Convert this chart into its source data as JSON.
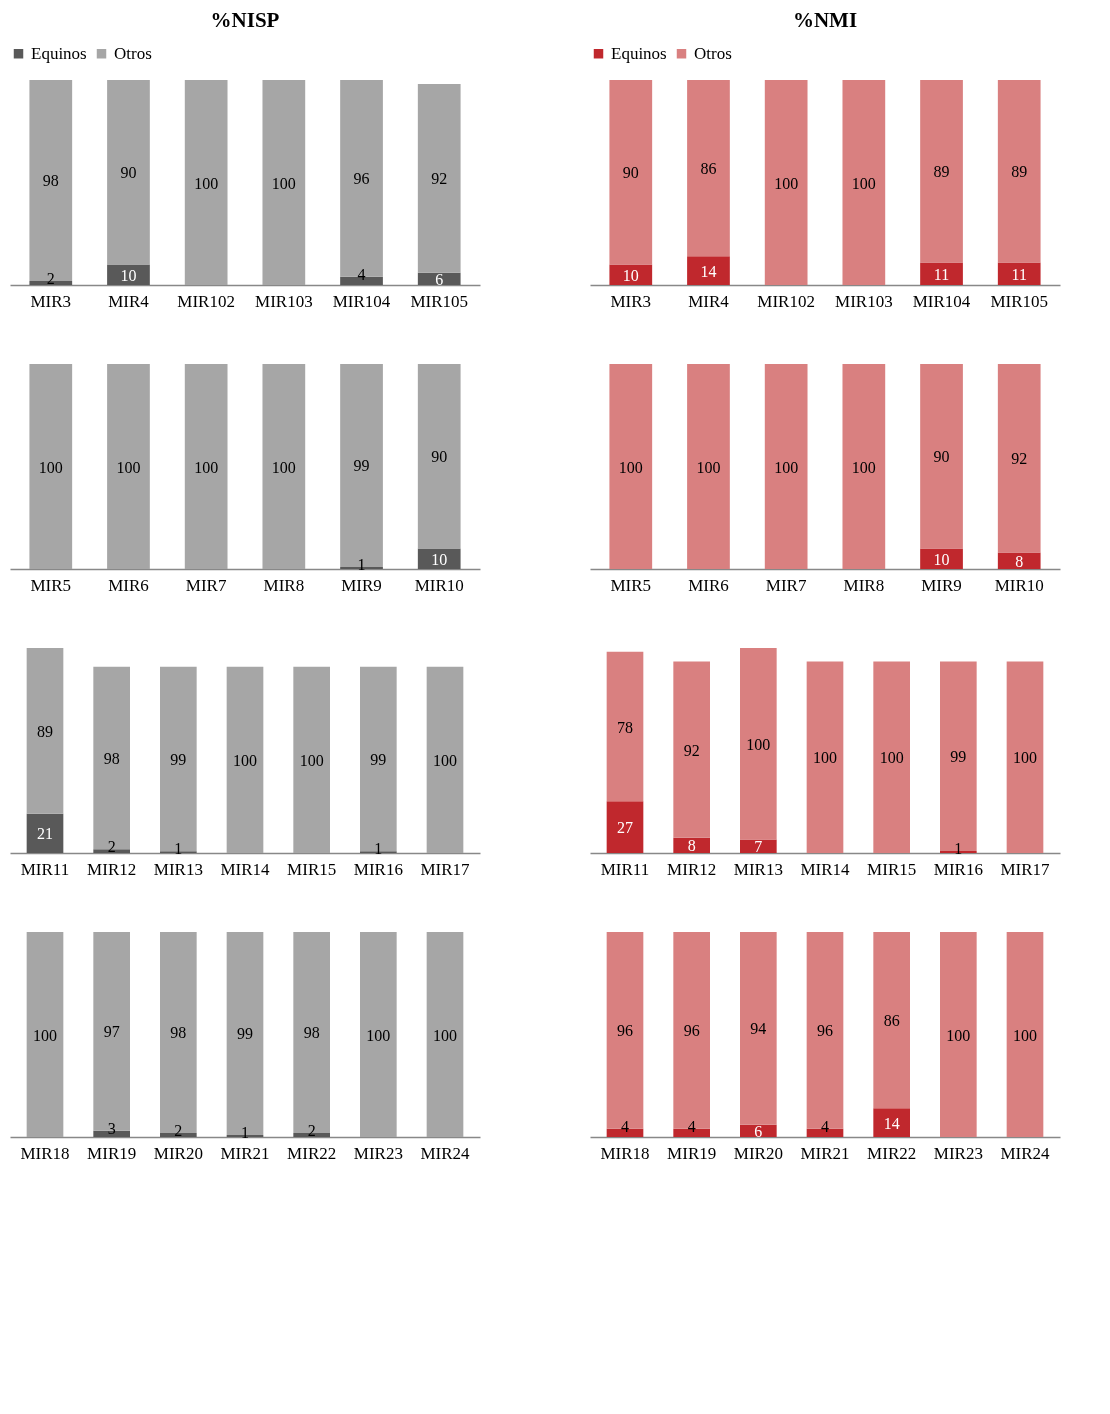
{
  "chart_data": [
    {
      "type": "bar",
      "title": "%NISP",
      "stacked": true,
      "legend": "top",
      "data_labels": true,
      "categories": [
        "MIR3",
        "MIR4",
        "MIR102",
        "MIR103",
        "MIR104",
        "MIR105"
      ],
      "series": [
        {
          "name": "Equinos",
          "color": "#595959",
          "values": [
            2,
            10,
            0,
            0,
            4,
            6
          ],
          "value_labels": [
            "2",
            "10",
            null,
            null,
            "4",
            "6"
          ]
        },
        {
          "name": "Otros",
          "color": "#a6a6a6",
          "values": [
            98,
            90,
            100,
            100,
            96,
            92
          ],
          "value_labels": [
            "98",
            "90",
            "100",
            "100",
            "96",
            "92"
          ]
        }
      ]
    },
    {
      "type": "bar",
      "title": "%NMI",
      "stacked": true,
      "legend": "top",
      "data_labels": true,
      "categories": [
        "MIR3",
        "MIR4",
        "MIR102",
        "MIR103",
        "MIR104",
        "MIR105"
      ],
      "series": [
        {
          "name": "Equinos",
          "color": "#c0282d",
          "values": [
            10,
            14,
            0,
            0,
            11,
            11
          ],
          "value_labels": [
            "10",
            "14",
            null,
            null,
            "11",
            "11"
          ]
        },
        {
          "name": "Otros",
          "color": "#d98080",
          "values": [
            90,
            86,
            100,
            100,
            89,
            89
          ],
          "value_labels": [
            "90",
            "86",
            "100",
            "100",
            "89",
            "89"
          ]
        }
      ]
    },
    {
      "type": "bar",
      "stacked": true,
      "data_labels": true,
      "categories": [
        "MIR5",
        "MIR6",
        "MIR7",
        "MIR8",
        "MIR9",
        "MIR10"
      ],
      "series": [
        {
          "color": "#595959",
          "values": [
            0,
            0,
            0,
            0,
            1,
            10
          ],
          "value_labels": [
            null,
            null,
            null,
            null,
            "1",
            "10"
          ]
        },
        {
          "color": "#a6a6a6",
          "values": [
            100,
            100,
            100,
            100,
            99,
            90
          ],
          "value_labels": [
            "100",
            "100",
            "100",
            "100",
            "99",
            "90"
          ]
        }
      ]
    },
    {
      "type": "bar",
      "stacked": true,
      "data_labels": true,
      "categories": [
        "MIR5",
        "MIR6",
        "MIR7",
        "MIR8",
        "MIR9",
        "MIR10"
      ],
      "series": [
        {
          "color": "#c0282d",
          "values": [
            0,
            0,
            0,
            0,
            10,
            8
          ],
          "value_labels": [
            null,
            null,
            null,
            null,
            "10",
            "8"
          ]
        },
        {
          "color": "#d98080",
          "values": [
            100,
            100,
            100,
            100,
            90,
            92
          ],
          "value_labels": [
            "100",
            "100",
            "100",
            "100",
            "90",
            "92"
          ]
        }
      ]
    },
    {
      "type": "bar",
      "stacked": true,
      "data_labels": true,
      "categories": [
        "MIR11",
        "MIR12",
        "MIR13",
        "MIR14",
        "MIR15",
        "MIR16",
        "MIR17"
      ],
      "series": [
        {
          "color": "#595959",
          "values": [
            21,
            2,
            1,
            0,
            0,
            1,
            0
          ],
          "value_labels": [
            "21",
            "2",
            "1",
            null,
            null,
            "1",
            null
          ]
        },
        {
          "color": "#a6a6a6",
          "values": [
            89,
            98,
            99,
            100,
            100,
            99,
            100
          ],
          "value_labels": [
            "89",
            "98",
            "99",
            "100",
            "100",
            "99",
            "100"
          ]
        }
      ]
    },
    {
      "type": "bar",
      "stacked": true,
      "data_labels": true,
      "categories": [
        "MIR11",
        "MIR12",
        "MIR13",
        "MIR14",
        "MIR15",
        "MIR16",
        "MIR17"
      ],
      "series": [
        {
          "color": "#c0282d",
          "values": [
            27,
            8,
            7,
            0,
            0,
            1,
            0
          ],
          "value_labels": [
            "27",
            "8",
            "7",
            null,
            null,
            "1",
            null
          ]
        },
        {
          "color": "#d98080",
          "values": [
            78,
            92,
            100,
            100,
            100,
            99,
            100
          ],
          "value_labels": [
            "78",
            "92",
            "100",
            "100",
            "100",
            "99",
            "100"
          ]
        }
      ]
    },
    {
      "type": "bar",
      "stacked": true,
      "data_labels": true,
      "categories": [
        "MIR18",
        "MIR19",
        "MIR20",
        "MIR21",
        "MIR22",
        "MIR23",
        "MIR24"
      ],
      "series": [
        {
          "color": "#595959",
          "values": [
            0,
            3,
            2,
            1,
            2,
            0,
            0
          ],
          "value_labels": [
            null,
            "3",
            "2",
            "1",
            "2",
            null,
            null
          ]
        },
        {
          "color": "#a6a6a6",
          "values": [
            100,
            97,
            98,
            99,
            98,
            100,
            100
          ],
          "value_labels": [
            "100",
            "97",
            "98",
            "99",
            "98",
            "100",
            "100"
          ]
        }
      ]
    },
    {
      "type": "bar",
      "stacked": true,
      "data_labels": true,
      "categories": [
        "MIR18",
        "MIR19",
        "MIR20",
        "MIR21",
        "MIR22",
        "MIR23",
        "MIR24"
      ],
      "series": [
        {
          "color": "#c0282d",
          "values": [
            4,
            4,
            6,
            4,
            14,
            0,
            0
          ],
          "value_labels": [
            "4",
            "4",
            "6",
            "4",
            "14",
            null,
            null
          ]
        },
        {
          "color": "#d98080",
          "values": [
            96,
            96,
            94,
            96,
            86,
            100,
            100
          ],
          "value_labels": [
            "96",
            "96",
            "94",
            "96",
            "86",
            "100",
            "100"
          ]
        }
      ]
    }
  ]
}
